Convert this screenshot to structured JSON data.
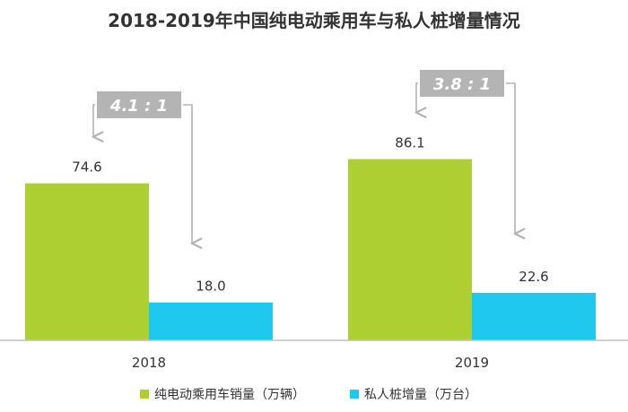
{
  "chart_data": {
    "type": "bar",
    "title": "2018-2019年中国纯电动乘用车与私人桩增量情况",
    "categories": [
      "2018",
      "2019"
    ],
    "series": [
      {
        "name": "纯电动乘用车销量（万辆）",
        "color": "#AECF32",
        "values": [
          74.6,
          86.1
        ]
      },
      {
        "name": "私人桩增量（万台）",
        "color": "#1EC8EE",
        "values": [
          18.0,
          22.6
        ]
      }
    ],
    "annotations": [
      {
        "category": "2018",
        "text": "4.1 : 1"
      },
      {
        "category": "2019",
        "text": "3.8 : 1"
      }
    ],
    "ylim": [
      0,
      120
    ],
    "grid": false,
    "legend_position": "bottom"
  },
  "colors": {
    "annotation_box": "#B4B4B4",
    "arrow": "#B4B4B4",
    "axis": "#BFBFBF",
    "text": "#333333"
  }
}
